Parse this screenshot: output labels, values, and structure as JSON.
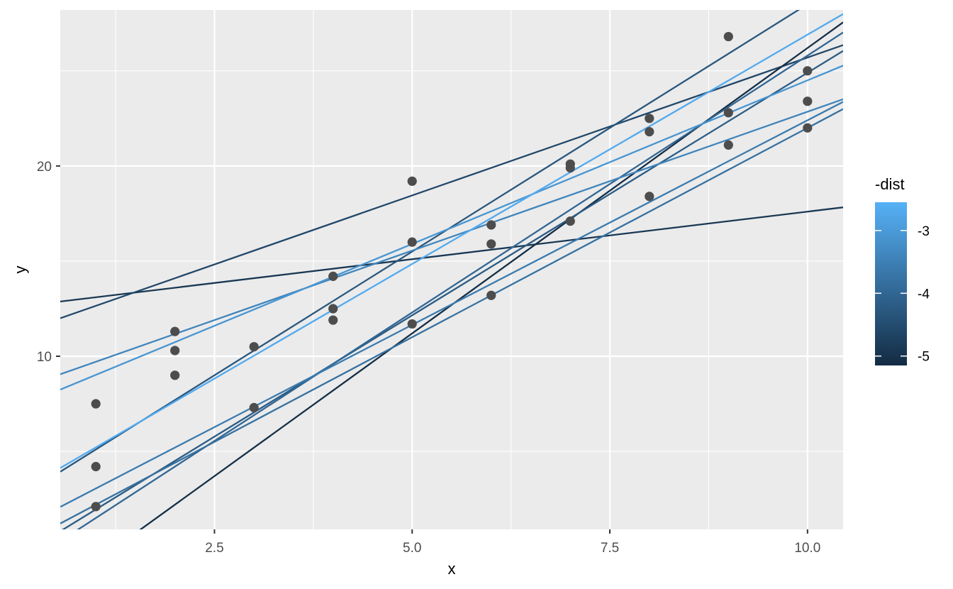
{
  "chart_data": {
    "type": "scatter",
    "xlabel": "x",
    "ylabel": "y",
    "xlim": [
      0.55,
      10.45
    ],
    "ylim": [
      0.9,
      28.2
    ],
    "x_ticks": [
      2.5,
      5.0,
      7.5,
      10.0
    ],
    "x_tick_labels": [
      "2.5",
      "5.0",
      "7.5",
      "10.0"
    ],
    "y_ticks": [
      10,
      20
    ],
    "y_tick_labels": [
      "10",
      "20"
    ],
    "grid": true,
    "points": [
      {
        "x": 1,
        "y": 7.5
      },
      {
        "x": 1,
        "y": 4.2
      },
      {
        "x": 1,
        "y": 2.1
      },
      {
        "x": 2,
        "y": 11.3
      },
      {
        "x": 2,
        "y": 10.3
      },
      {
        "x": 2,
        "y": 9.0
      },
      {
        "x": 3,
        "y": 10.5
      },
      {
        "x": 3,
        "y": 7.3
      },
      {
        "x": 4,
        "y": 14.2
      },
      {
        "x": 4,
        "y": 12.5
      },
      {
        "x": 4,
        "y": 11.9
      },
      {
        "x": 5,
        "y": 19.2
      },
      {
        "x": 5,
        "y": 16.0
      },
      {
        "x": 5,
        "y": 11.7
      },
      {
        "x": 6,
        "y": 16.9
      },
      {
        "x": 6,
        "y": 15.9
      },
      {
        "x": 6,
        "y": 13.2
      },
      {
        "x": 7,
        "y": 20.1
      },
      {
        "x": 7,
        "y": 19.9
      },
      {
        "x": 7,
        "y": 17.1
      },
      {
        "x": 8,
        "y": 22.5
      },
      {
        "x": 8,
        "y": 21.8
      },
      {
        "x": 8,
        "y": 18.4
      },
      {
        "x": 9,
        "y": 26.8
      },
      {
        "x": 9,
        "y": 22.8
      },
      {
        "x": 9,
        "y": 21.1
      },
      {
        "x": 10,
        "y": 25.0
      },
      {
        "x": 10,
        "y": 23.4
      },
      {
        "x": 10,
        "y": 22.0
      }
    ],
    "lines": [
      {
        "intercept": 12.6,
        "slope": 0.5,
        "dist": -4.9
      },
      {
        "intercept": 11.2,
        "slope": 1.45,
        "dist": -4.6
      },
      {
        "intercept": -3.8,
        "slope": 3.0,
        "dist": -5.1
      },
      {
        "intercept": 2.5,
        "slope": 2.6,
        "dist": -4.3
      },
      {
        "intercept": -0.6,
        "slope": 2.55,
        "dist": -4.2
      },
      {
        "intercept": -1.2,
        "slope": 2.7,
        "dist": -4.0
      },
      {
        "intercept": 0.9,
        "slope": 2.15,
        "dist": -3.6
      },
      {
        "intercept": 0.0,
        "slope": 2.2,
        "dist": -3.8
      },
      {
        "intercept": 8.25,
        "slope": 1.46,
        "dist": -3.4
      },
      {
        "intercept": 7.3,
        "slope": 1.72,
        "dist": -3.1
      },
      {
        "intercept": 2.8,
        "slope": 2.41,
        "dist": -2.7
      }
    ],
    "legend": {
      "title": "-dist",
      "position": "right",
      "range": [
        -5.15,
        -2.55
      ],
      "breaks": [
        -3,
        -4,
        -5
      ],
      "labels": [
        "-3",
        "-4",
        "-5"
      ],
      "low_color": "#132b43",
      "high_color": "#56b1f7"
    },
    "colors": {
      "panel_background": "#ebebeb",
      "grid_major": "#ffffff",
      "point": "#4d4d4d"
    }
  }
}
